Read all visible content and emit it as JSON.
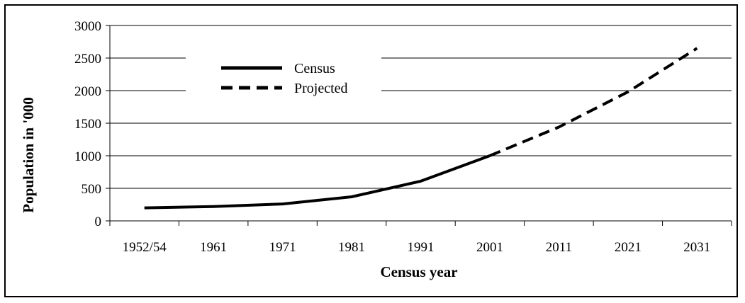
{
  "chart_data": {
    "type": "line",
    "xlabel": "Census year",
    "ylabel": "Population in '000",
    "categories": [
      "1952/54",
      "1961",
      "1971",
      "1981",
      "1991",
      "2001",
      "2011",
      "2021",
      "2031"
    ],
    "yticks": [
      0,
      500,
      1000,
      1500,
      2000,
      2500,
      3000
    ],
    "ylim": [
      0,
      3000
    ],
    "grid": "horizontal",
    "legend_position": "top-left",
    "series": [
      {
        "name": "Census",
        "style": "solid",
        "x": [
          "1952/54",
          "1961",
          "1971",
          "1981",
          "1991",
          "2001"
        ],
        "values": [
          200,
          220,
          260,
          370,
          610,
          1000
        ]
      },
      {
        "name": "Projected",
        "style": "dashed",
        "x": [
          "2001",
          "2011",
          "2021",
          "2031"
        ],
        "values": [
          1000,
          1440,
          1980,
          2650
        ]
      }
    ]
  },
  "colors": {
    "line": "#000000",
    "grid": "#000000",
    "background": "#ffffff"
  }
}
